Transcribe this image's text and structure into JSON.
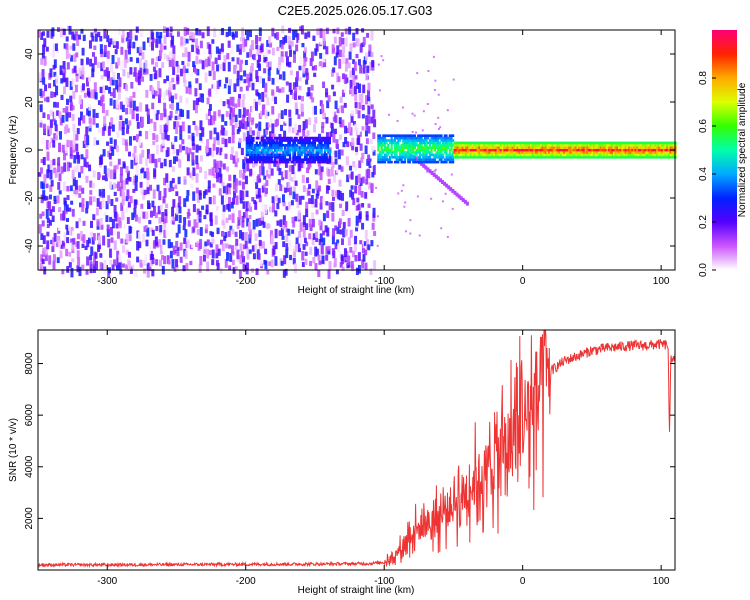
{
  "title": "C2E5.2025.026.05.17.G03",
  "chart_data": [
    {
      "type": "heatmap",
      "xlabel": "Height of straight line (km)",
      "ylabel": "Frequency (Hz)",
      "xlim": [
        -350,
        110
      ],
      "ylim": [
        -50,
        50
      ],
      "xticks": [
        -300,
        -200,
        -100,
        0,
        100
      ],
      "yticks": [
        -40,
        -20,
        0,
        20,
        40
      ],
      "colorbar": {
        "label": "Normalized spectral amplitude",
        "range": [
          0,
          1
        ],
        "ticks": [
          "0.0",
          "0.2",
          "0.4",
          "0.6",
          "0.8"
        ],
        "colors": [
          "#ffffff",
          "#cc55ff",
          "#5500ff",
          "#0022ff",
          "#00aaff",
          "#00ffaa",
          "#33ff00",
          "#ddff00",
          "#ffaa00",
          "#ff2200",
          "#ff0077"
        ]
      },
      "features": [
        {
          "region": [
            -350,
            -110
          ],
          "description_values": {
            "amplitude_range": [
              0.0,
              0.3
            ],
            "frequency_span": [
              -50,
              50
            ]
          }
        },
        {
          "region": [
            -200,
            -140
          ],
          "description_values": {
            "amplitude_range": [
              0.2,
              0.45
            ],
            "frequency_span": [
              -5,
              5
            ]
          }
        },
        {
          "region": [
            -105,
            -50
          ],
          "description_values": {
            "amplitude_range": [
              0.3,
              0.65
            ],
            "frequency_span": [
              -5,
              6
            ]
          }
        },
        {
          "region": [
            -50,
            110
          ],
          "description_values": {
            "amplitude_range": [
              0.5,
              1.0
            ],
            "frequency_span": [
              -3,
              3
            ]
          }
        }
      ]
    },
    {
      "type": "line",
      "xlabel": "Height of straight line (km)",
      "ylabel": "SNR (10 * v/v)",
      "xlim": [
        -350,
        110
      ],
      "ylim": [
        0,
        9300
      ],
      "xticks": [
        -300,
        -200,
        -100,
        0,
        100
      ],
      "yticks": [
        2000,
        4000,
        6000,
        8000
      ],
      "color": "#ee3333",
      "series": [
        {
          "x": [
            -350,
            -300,
            -250,
            -200,
            -150,
            -110,
            -100,
            -95,
            -90,
            -85,
            -80,
            -75,
            -70,
            -65,
            -60,
            -55,
            -50,
            -45,
            -40,
            -35,
            -30,
            -25,
            -20,
            -15,
            -10,
            -5,
            0,
            5,
            10,
            15,
            20,
            25,
            30,
            40,
            50,
            60,
            70,
            80,
            90,
            100,
            105,
            106,
            107,
            110
          ],
          "y": [
            200,
            200,
            210,
            220,
            230,
            250,
            300,
            450,
            700,
            1100,
            1500,
            1600,
            1800,
            1900,
            2000,
            2300,
            2600,
            2800,
            3200,
            3400,
            3600,
            3900,
            4300,
            4600,
            4900,
            5300,
            5800,
            6200,
            6700,
            7200,
            7700,
            7900,
            8100,
            8300,
            8500,
            8600,
            8650,
            8700,
            8700,
            8750,
            8700,
            5000,
            8200,
            8300
          ]
        }
      ]
    }
  ]
}
